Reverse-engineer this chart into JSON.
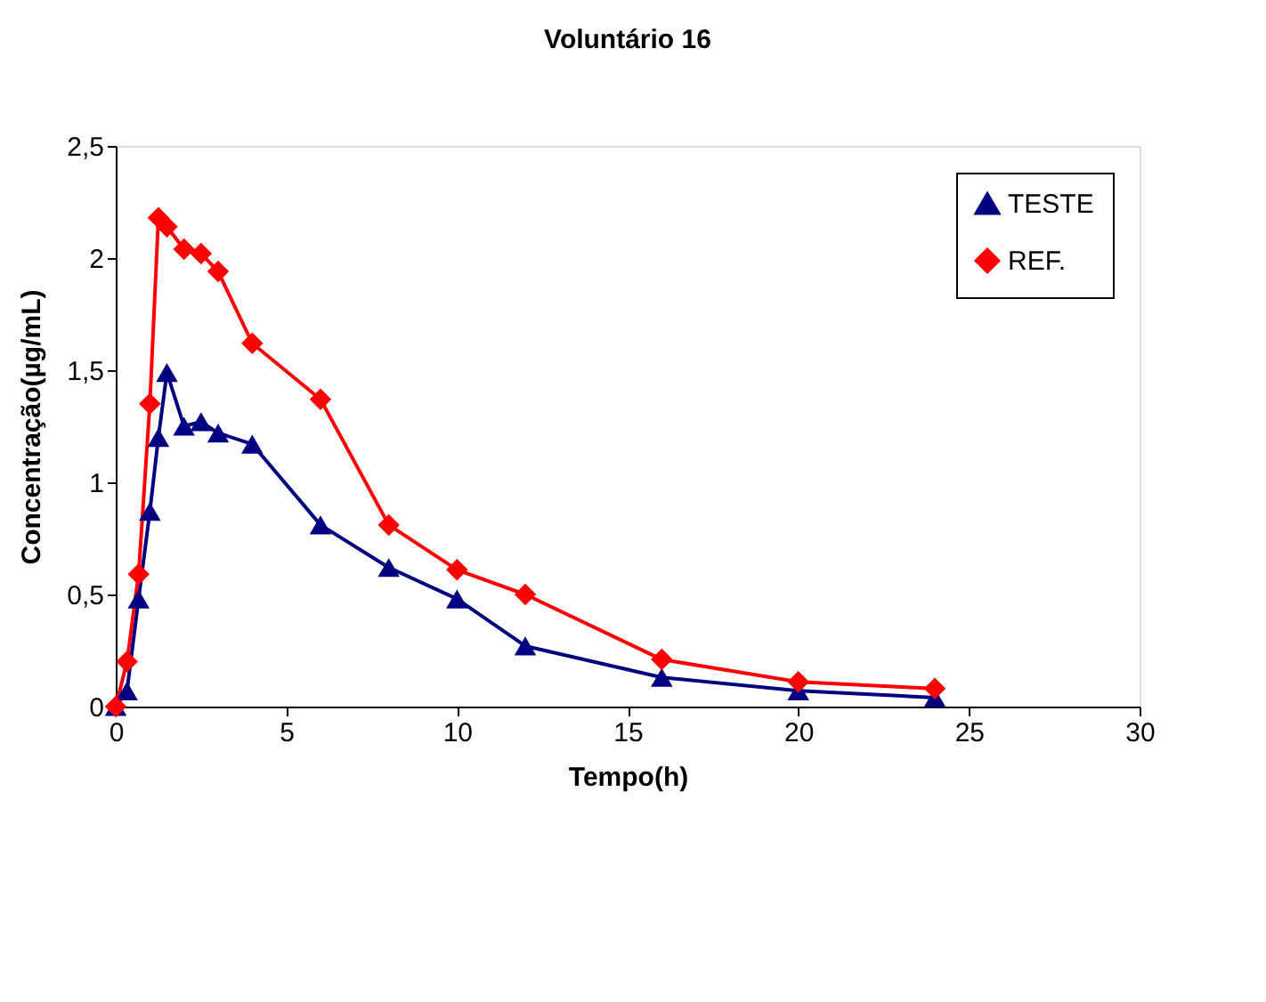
{
  "chart_data": {
    "type": "line",
    "title": "Voluntário 16",
    "xlabel": "Tempo(h)",
    "ylabel": "Concentração(µg/mL)",
    "x": [
      0,
      0.33,
      0.67,
      1,
      1.25,
      1.5,
      2,
      2.5,
      3,
      4,
      6,
      8,
      10,
      12,
      16,
      20,
      24
    ],
    "series": [
      {
        "name": "TESTE",
        "color": "#000080",
        "marker": "triangle",
        "values": [
          0,
          0.07,
          0.48,
          0.87,
          1.2,
          1.49,
          1.25,
          1.27,
          1.22,
          1.17,
          0.81,
          0.62,
          0.48,
          0.27,
          0.13,
          0.07,
          0.04
        ]
      },
      {
        "name": "REF.",
        "color": "#ff0000",
        "marker": "diamond",
        "values": [
          0,
          0.2,
          0.59,
          1.35,
          2.18,
          2.14,
          2.04,
          2.02,
          1.94,
          1.62,
          1.37,
          0.81,
          0.61,
          0.5,
          0.21,
          0.11,
          0.08
        ]
      }
    ],
    "xlim": [
      0,
      30
    ],
    "xticks": [
      0,
      5,
      10,
      15,
      20,
      25,
      30
    ],
    "ylim": [
      0,
      2.5
    ],
    "yticks": [
      0,
      {
        "value": 0.5,
        "label": "0,5"
      },
      1,
      {
        "value": 1.5,
        "label": "1,5"
      },
      2,
      {
        "value": 2.5,
        "label": "2,5"
      }
    ],
    "grid": false,
    "legend": "top right",
    "line_style": "solid"
  }
}
